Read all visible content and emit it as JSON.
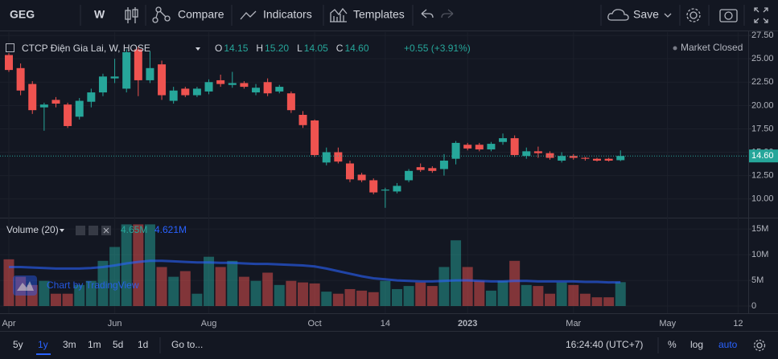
{
  "toolbar": {
    "symbol": "GEG",
    "interval": "W",
    "compare": "Compare",
    "indicators": "Indicators",
    "templates": "Templates",
    "save": "Save"
  },
  "watermark": "Chart by TradingView",
  "footer": {
    "ranges": [
      "5y",
      "1y",
      "3m",
      "1m",
      "5d",
      "1d"
    ],
    "goto": "Go to...",
    "clock": "16:24:40 (UTC+7)",
    "percent": "%",
    "log": "log",
    "auto": "auto"
  },
  "chart_data": [
    {
      "type": "candlestick",
      "title": "CTCP Điện Gia Lai, W, HOSE",
      "status": "Market Closed",
      "ohlc_legend": [
        {
          "label": "O",
          "value": "14.15"
        },
        {
          "label": "H",
          "value": "15.20"
        },
        {
          "label": "L",
          "value": "14.05"
        },
        {
          "label": "C",
          "value": "14.60"
        }
      ],
      "change": "+0.55 (+3.91%)",
      "up_color": "#26a69a",
      "down_color": "#ef5350",
      "categories": [
        "Apr",
        null,
        null,
        null,
        null,
        null,
        null,
        null,
        null,
        "Jun",
        null,
        null,
        null,
        null,
        null,
        null,
        null,
        "Aug",
        null,
        null,
        null,
        null,
        null,
        null,
        null,
        null,
        "Oct",
        null,
        null,
        null,
        null,
        null,
        "14",
        null,
        null,
        null,
        null,
        null,
        null,
        "2023",
        null,
        null,
        null,
        null,
        null,
        null,
        null,
        null,
        "Mar",
        null,
        null,
        null,
        null,
        null,
        null,
        null,
        "May",
        null,
        null,
        null,
        null,
        null,
        "12"
      ],
      "open": [
        25.4,
        24.0,
        22.3,
        19.8,
        20.6,
        20.1,
        18.8,
        20.4,
        21.4,
        22.9,
        21.8,
        26.0,
        22.7,
        24.4,
        20.5,
        21.8,
        21.1,
        21.5,
        22.7,
        22.2,
        22.4,
        21.4,
        22.5,
        21.5,
        21.3,
        19.0,
        18.4,
        13.9,
        15.0,
        13.8,
        12.6,
        12.0,
        10.9,
        10.8,
        12.0,
        13.4,
        13.3,
        13.2,
        14.3,
        15.8,
        15.8,
        15.3,
        16.1,
        16.5,
        14.6,
        15.1,
        14.9,
        14.1,
        14.6,
        14.4,
        14.3,
        14.3,
        14.15,
        null,
        null,
        null,
        null,
        null,
        null,
        null,
        null,
        null,
        null
      ],
      "high": [
        25.6,
        24.5,
        22.6,
        20.3,
        20.9,
        20.3,
        20.8,
        21.8,
        23.4,
        25.0,
        26.0,
        26.3,
        25.8,
        24.8,
        22.0,
        22.0,
        22.0,
        22.8,
        23.3,
        23.6,
        22.6,
        22.3,
        22.9,
        22.2,
        21.5,
        19.4,
        18.5,
        15.5,
        15.5,
        14.1,
        12.8,
        12.2,
        11.2,
        11.7,
        13.2,
        13.8,
        13.5,
        14.8,
        16.2,
        16.0,
        16.0,
        16.1,
        17.0,
        16.8,
        15.5,
        15.6,
        15.1,
        15.0,
        14.8,
        14.5,
        14.4,
        14.4,
        15.2,
        null,
        null,
        null,
        null,
        null,
        null,
        null,
        null,
        null,
        null
      ],
      "low": [
        23.6,
        21.1,
        19.1,
        17.3,
        19.8,
        17.6,
        18.5,
        19.8,
        21.0,
        22.4,
        21.4,
        21.0,
        22.4,
        20.6,
        20.2,
        20.9,
        20.9,
        21.2,
        22.0,
        21.9,
        21.8,
        21.1,
        21.0,
        21.3,
        19.2,
        17.6,
        14.5,
        13.6,
        13.8,
        11.8,
        11.8,
        10.5,
        9.05,
        10.6,
        11.8,
        12.9,
        12.8,
        12.5,
        13.7,
        15.2,
        15.1,
        15.1,
        15.8,
        14.5,
        14.3,
        14.4,
        14.2,
        13.9,
        14.2,
        14.1,
        14.0,
        14.0,
        14.05,
        null,
        null,
        null,
        null,
        null,
        null,
        null,
        null,
        null,
        null
      ],
      "close": [
        23.8,
        21.6,
        19.5,
        20.1,
        20.2,
        17.8,
        20.5,
        21.4,
        23.1,
        23.1,
        25.7,
        22.7,
        24.0,
        21.1,
        21.6,
        21.1,
        21.8,
        22.5,
        22.3,
        22.4,
        22.0,
        21.9,
        21.3,
        22.0,
        19.5,
        17.9,
        14.7,
        15.0,
        14.0,
        12.1,
        12.0,
        10.7,
        11.0,
        11.4,
        13.0,
        13.1,
        13.0,
        14.1,
        16.0,
        15.4,
        15.3,
        15.9,
        16.5,
        14.7,
        15.1,
        14.9,
        14.4,
        14.6,
        14.4,
        14.3,
        14.1,
        14.1,
        14.6,
        null,
        null,
        null,
        null,
        null,
        null,
        null,
        null,
        null,
        null
      ],
      "last_price": {
        "value": 14.6,
        "label": "14.60"
      },
      "ylim": [
        8.0,
        27.85
      ],
      "yticks": [
        {
          "value": 27.5,
          "label": "27.50"
        },
        {
          "value": 25,
          "label": "25.00"
        },
        {
          "value": 22.5,
          "label": "22.50"
        },
        {
          "value": 20,
          "label": "20.00"
        },
        {
          "value": 17.5,
          "label": "17.50"
        },
        {
          "value": 15,
          "label": "15.00"
        },
        {
          "value": 12.5,
          "label": "12.50"
        },
        {
          "value": 10,
          "label": "10.00"
        }
      ],
      "grid": true
    },
    {
      "type": "volume",
      "title": "Volume (20)",
      "legend_values": [
        "4.65M",
        "4.621M"
      ],
      "series": [
        {
          "values": [
            9.1,
            5.7,
            4.1,
            4.9,
            2.4,
            2.4,
            4.1,
            4.9,
            8.8,
            11.5,
            15.9,
            15.9,
            15.9,
            7.6,
            5.7,
            6.8,
            2.4,
            9.6,
            7.6,
            8.8,
            5.7,
            4.9,
            6.5,
            4.1,
            4.9,
            4.6,
            4.4,
            2.8,
            2.4,
            3.3,
            3.0,
            2.7,
            4.9,
            3.3,
            3.9,
            4.6,
            3.9,
            7.6,
            12.8,
            7.6,
            4.9,
            3.0,
            4.9,
            8.8,
            4.1,
            3.9,
            2.4,
            4.6,
            4.1,
            2.4,
            1.7,
            1.7,
            4.65,
            null,
            null,
            null,
            null,
            null,
            null,
            null,
            null,
            null,
            null
          ]
        },
        {
          "color": "#2962ff",
          "values": [
            7.6,
            7.6,
            7.5,
            7.4,
            7.3,
            7.3,
            7.3,
            7.4,
            7.6,
            7.9,
            8.3,
            8.6,
            8.8,
            8.8,
            8.7,
            8.6,
            8.5,
            8.5,
            8.4,
            8.4,
            8.3,
            8.2,
            8.2,
            8.1,
            8.0,
            7.9,
            7.7,
            7.3,
            6.8,
            6.3,
            5.8,
            5.4,
            5.2,
            5.0,
            4.9,
            4.8,
            4.8,
            4.9,
            5.0,
            5.0,
            4.9,
            4.8,
            4.8,
            4.9,
            4.9,
            4.8,
            4.8,
            4.8,
            4.8,
            4.7,
            4.7,
            4.6,
            4.621,
            null,
            null,
            null,
            null,
            null,
            null,
            null,
            null,
            null,
            null
          ]
        }
      ],
      "ylim": [
        -1.4,
        16.9
      ],
      "yticks": [
        {
          "value": 15,
          "label": "15M"
        },
        {
          "value": 10,
          "label": "10M"
        },
        {
          "value": 5,
          "label": "5M"
        },
        0
      ]
    }
  ]
}
